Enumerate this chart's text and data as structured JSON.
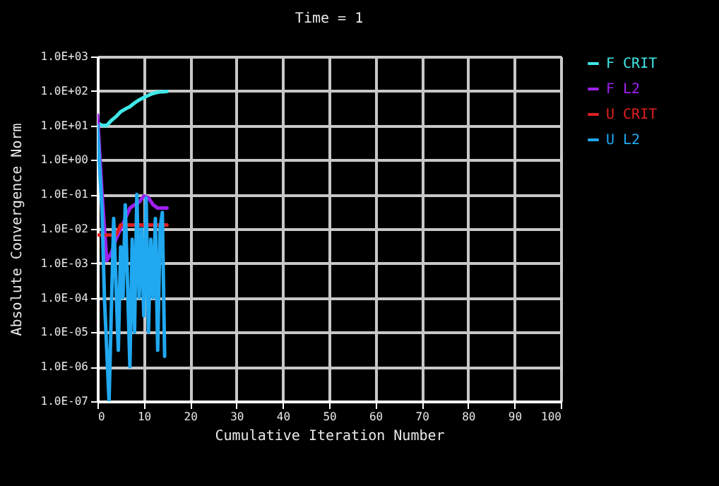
{
  "chart_data": {
    "type": "line",
    "title": "Time = 1",
    "xlabel": "Cumulative Iteration Number",
    "ylabel": "Absolute Convergence Norm",
    "xlim": [
      0,
      100
    ],
    "xticks": [
      0,
      10,
      20,
      30,
      40,
      50,
      60,
      70,
      80,
      90,
      100
    ],
    "ylim": [
      1e-07,
      1000
    ],
    "yticks": [
      {
        "value": 1000,
        "label": "1.0E+03"
      },
      {
        "value": 100,
        "label": "1.0E+02"
      },
      {
        "value": 10,
        "label": "1.0E+01"
      },
      {
        "value": 1,
        "label": "1.0E+00"
      },
      {
        "value": 0.1,
        "label": "1.0E-01"
      },
      {
        "value": 0.01,
        "label": "1.0E-02"
      },
      {
        "value": 0.001,
        "label": "1.0E-03"
      },
      {
        "value": 0.0001,
        "label": "1.0E-04"
      },
      {
        "value": 1e-05,
        "label": "1.0E-05"
      },
      {
        "value": 1e-06,
        "label": "1.0E-06"
      },
      {
        "value": 1e-07,
        "label": "1.0E-07"
      }
    ],
    "log": "y",
    "grid": true,
    "legend": "right",
    "line_style": "solid",
    "series": [
      {
        "name": "F  CRIT",
        "color": "#40e8e8",
        "x": [
          0,
          1,
          2,
          3,
          4,
          5,
          6,
          7,
          8,
          9,
          10,
          11,
          12,
          13,
          14,
          15
        ],
        "values": [
          12,
          10,
          10,
          14,
          18,
          25,
          30,
          35,
          45,
          55,
          65,
          75,
          85,
          92,
          95,
          97
        ]
      },
      {
        "name": "F  L2",
        "color": "#a020f0",
        "x": [
          0,
          1,
          2,
          3,
          4,
          5,
          6,
          7,
          8,
          9,
          10,
          11,
          12,
          13,
          14,
          15
        ],
        "values": [
          20,
          0.1,
          0.0012,
          0.002,
          0.005,
          0.01,
          0.02,
          0.04,
          0.05,
          0.06,
          0.09,
          0.08,
          0.05,
          0.04,
          0.04,
          0.04
        ]
      },
      {
        "name": "U  CRIT",
        "color": "#e02020",
        "x": [
          0,
          4,
          5,
          15
        ],
        "values": [
          0.0066,
          0.0066,
          0.013,
          0.013
        ]
      },
      {
        "name": "U  L2",
        "color": "#20a8f0",
        "x": [
          0,
          0.5,
          1,
          1.5,
          2.5,
          3.5,
          4.5,
          5,
          5.5,
          6,
          7,
          7.5,
          8,
          8.5,
          9,
          9.5,
          10,
          10.5,
          11,
          11.5,
          12,
          12.5,
          13,
          13.5,
          14,
          14.5
        ],
        "values": [
          10,
          0.5,
          0.03,
          0.0001,
          1e-07,
          0.02,
          3e-06,
          0.003,
          0.0001,
          0.05,
          1e-06,
          0.005,
          1e-05,
          0.1,
          0.0001,
          0.01,
          3e-05,
          0.08,
          1e-05,
          0.005,
          0.0001,
          0.02,
          3e-06,
          0.01,
          0.03,
          2e-06
        ]
      }
    ]
  }
}
